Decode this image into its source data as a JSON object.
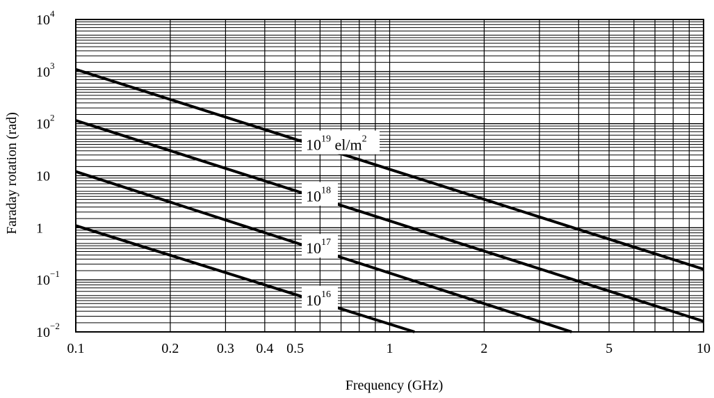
{
  "chart_data": {
    "type": "line",
    "xlabel": "Frequency (GHz)",
    "ylabel": "Faraday rotation (rad)",
    "x_scale": "log",
    "y_scale": "log",
    "xlim": [
      0.1,
      10
    ],
    "ylim": [
      0.01,
      10000
    ],
    "grid": true,
    "x_ticks": [
      {
        "value": 0.1,
        "label": "0.1"
      },
      {
        "value": 0.2,
        "label": "0.2"
      },
      {
        "value": 0.3,
        "label": "0.3"
      },
      {
        "value": 0.4,
        "label": "0.4"
      },
      {
        "value": 0.5,
        "label": "0.5"
      },
      {
        "value": 1,
        "label": "1"
      },
      {
        "value": 2,
        "label": "2"
      },
      {
        "value": 5,
        "label": "5"
      },
      {
        "value": 10,
        "label": "10"
      }
    ],
    "y_ticks": [
      {
        "value": 10000,
        "base": "10",
        "exp": "4"
      },
      {
        "value": 1000,
        "base": "10",
        "exp": "3"
      },
      {
        "value": 100,
        "base": "10",
        "exp": "2"
      },
      {
        "value": 10,
        "base": "10",
        "exp": ""
      },
      {
        "value": 1,
        "base": "1",
        "exp": ""
      },
      {
        "value": 0.1,
        "base": "10",
        "exp": "−1"
      },
      {
        "value": 0.01,
        "base": "10",
        "exp": "−2"
      }
    ],
    "series": [
      {
        "label_base": "10",
        "label_exp": "19",
        "label_suffix": " el/m",
        "label_suffix_exp": "2",
        "x": [
          0.1,
          10
        ],
        "y": [
          1100,
          0.16
        ]
      },
      {
        "label_base": "10",
        "label_exp": "18",
        "label_suffix": "",
        "label_suffix_exp": "",
        "x": [
          0.1,
          10
        ],
        "y": [
          115,
          0.016
        ]
      },
      {
        "label_base": "10",
        "label_exp": "17",
        "label_suffix": "",
        "label_suffix_exp": "",
        "x": [
          0.1,
          3.8
        ],
        "y": [
          12,
          0.01
        ]
      },
      {
        "label_base": "10",
        "label_exp": "16",
        "label_suffix": "",
        "label_suffix_exp": "",
        "x": [
          0.1,
          1.2
        ],
        "y": [
          1.1,
          0.01
        ]
      }
    ]
  }
}
